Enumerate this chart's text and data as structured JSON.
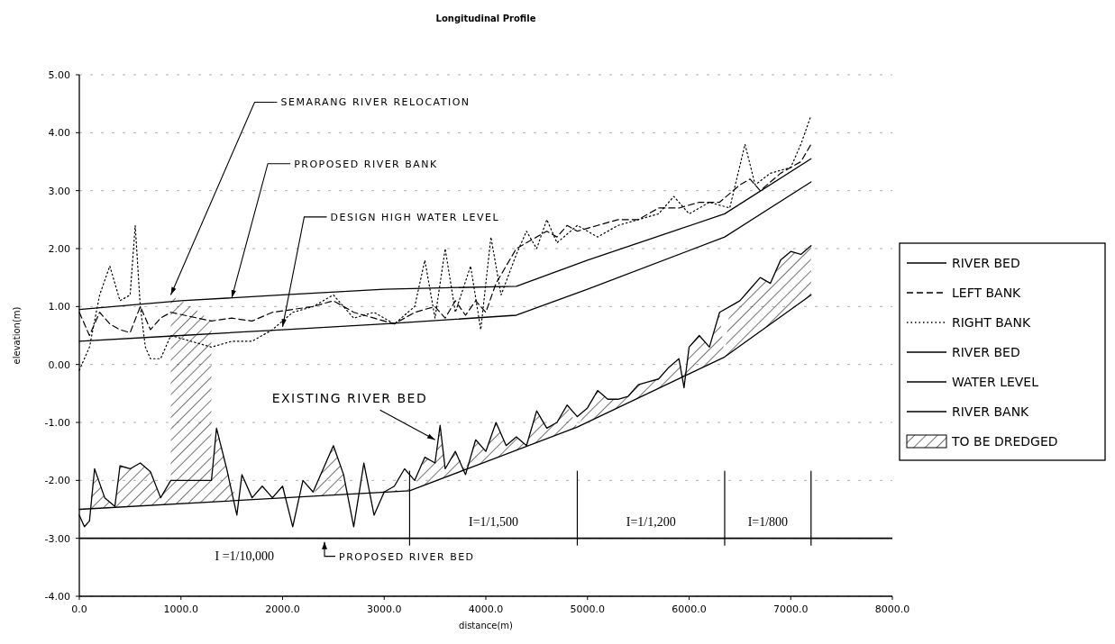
{
  "chart_data": {
    "type": "line",
    "title": "Longitudinal Profile",
    "xlabel": "distance(m)",
    "ylabel": "elevation(m)",
    "xlim": [
      0,
      8000
    ],
    "xticks": [
      {
        "value": 0,
        "label": "0.0"
      },
      {
        "value": 1000,
        "label": "1000.0"
      },
      {
        "value": 2000,
        "label": "2000.0"
      },
      {
        "value": 3000,
        "label": "3000.0"
      },
      {
        "value": 4000,
        "label": "4000.0"
      },
      {
        "value": 5000,
        "label": "5000.0"
      },
      {
        "value": 6000,
        "label": "6000.0"
      },
      {
        "value": 7000,
        "label": "7000.0"
      },
      {
        "value": 8000,
        "label": "8000.0"
      }
    ],
    "ylim": [
      -4,
      5
    ],
    "yticks": [
      {
        "value": -4,
        "label": "-4.00"
      },
      {
        "value": -3,
        "label": "-3.00"
      },
      {
        "value": -2,
        "label": "-2.00"
      },
      {
        "value": -1,
        "label": "-1.00"
      },
      {
        "value": 0,
        "label": "0.00"
      },
      {
        "value": 1,
        "label": "1.00"
      },
      {
        "value": 2,
        "label": "2.00"
      },
      {
        "value": 3,
        "label": "3.00"
      },
      {
        "value": 4,
        "label": "4.00"
      },
      {
        "value": 5,
        "label": "5.00"
      }
    ],
    "grid": "y",
    "legend": "right",
    "series": [
      {
        "name": "RIVER BED",
        "type": "line",
        "line_style": "solid",
        "color": "#000000",
        "x": [
          0,
          50,
          100,
          150,
          250,
          350,
          400,
          500,
          600,
          700,
          800,
          900,
          1300,
          1350,
          1450,
          1550,
          1600,
          1700,
          1800,
          1900,
          2000,
          2100,
          2200,
          2300,
          2400,
          2500,
          2600,
          2700,
          2800,
          2900,
          3000,
          3100,
          3200,
          3300,
          3400,
          3500,
          3550,
          3600,
          3700,
          3800,
          3900,
          4000,
          4100,
          4200,
          4300,
          4400,
          4500,
          4600,
          4700,
          4800,
          4900,
          5000,
          5100,
          5200,
          5300,
          5400,
          5500,
          5600,
          5700,
          5800,
          5900,
          5950,
          6000,
          6100,
          6200,
          6300,
          6400,
          6500,
          6600,
          6700,
          6800,
          6900,
          7000,
          7100,
          7200
        ],
        "values": [
          -2.6,
          -2.8,
          -2.7,
          -1.8,
          -2.3,
          -2.45,
          -1.75,
          -1.8,
          -1.7,
          -1.85,
          -2.3,
          -2.0,
          -2.0,
          -1.1,
          -1.8,
          -2.6,
          -1.9,
          -2.3,
          -2.1,
          -2.3,
          -2.1,
          -2.8,
          -2.0,
          -2.2,
          -1.8,
          -1.4,
          -1.9,
          -2.8,
          -1.7,
          -2.6,
          -2.2,
          -2.1,
          -1.8,
          -2.0,
          -1.6,
          -1.7,
          -1.05,
          -1.8,
          -1.5,
          -1.9,
          -1.3,
          -1.5,
          -1.0,
          -1.4,
          -1.25,
          -1.4,
          -0.8,
          -1.1,
          -1.0,
          -0.7,
          -0.9,
          -0.75,
          -0.45,
          -0.6,
          -0.6,
          -0.55,
          -0.35,
          -0.3,
          -0.25,
          -0.05,
          0.1,
          -0.4,
          0.3,
          0.5,
          0.3,
          0.9,
          1.0,
          1.1,
          1.3,
          1.5,
          1.4,
          1.8,
          1.95,
          1.9,
          2.05
        ]
      },
      {
        "name": "LEFT BANK",
        "type": "line",
        "line_style": "dashed",
        "color": "#000000",
        "x": [
          0,
          100,
          200,
          300,
          400,
          500,
          600,
          700,
          800,
          900,
          1300,
          1500,
          1700,
          1900,
          2100,
          2300,
          2500,
          2700,
          2900,
          3100,
          3300,
          3500,
          3600,
          3700,
          3800,
          3900,
          4000,
          4100,
          4200,
          4300,
          4400,
          4500,
          4600,
          4700,
          4800,
          4900,
          5100,
          5300,
          5500,
          5700,
          5900,
          6100,
          6300,
          6500,
          6600,
          6700,
          6900,
          7100,
          7200
        ],
        "values": [
          0.9,
          0.5,
          0.9,
          0.7,
          0.6,
          0.55,
          1.0,
          0.6,
          0.8,
          0.9,
          0.75,
          0.8,
          0.75,
          0.9,
          0.95,
          1.0,
          1.1,
          0.9,
          0.8,
          0.7,
          0.9,
          1.0,
          0.8,
          1.1,
          0.85,
          1.1,
          0.9,
          1.4,
          1.7,
          2.0,
          2.1,
          2.2,
          2.3,
          2.2,
          2.4,
          2.3,
          2.4,
          2.5,
          2.5,
          2.7,
          2.7,
          2.8,
          2.8,
          3.1,
          3.2,
          3.0,
          3.3,
          3.5,
          3.8
        ]
      },
      {
        "name": "RIGHT BANK",
        "type": "line",
        "line_style": "dotted",
        "color": "#000000",
        "x": [
          0,
          100,
          200,
          300,
          400,
          500,
          550,
          600,
          650,
          700,
          800,
          900,
          1300,
          1500,
          1700,
          1900,
          2100,
          2300,
          2500,
          2700,
          2900,
          3100,
          3300,
          3400,
          3500,
          3600,
          3700,
          3850,
          3950,
          4050,
          4150,
          4300,
          4400,
          4500,
          4600,
          4700,
          4900,
          5100,
          5300,
          5500,
          5700,
          5850,
          6000,
          6200,
          6400,
          6550,
          6650,
          6800,
          7000,
          7100,
          7200
        ],
        "values": [
          -0.1,
          0.3,
          1.2,
          1.7,
          1.1,
          1.2,
          2.4,
          1.0,
          0.3,
          0.1,
          0.1,
          0.5,
          0.3,
          0.4,
          0.4,
          0.6,
          0.9,
          1.0,
          1.2,
          0.8,
          0.9,
          0.7,
          1.0,
          1.8,
          0.8,
          2.0,
          0.9,
          1.7,
          0.6,
          2.2,
          1.2,
          1.9,
          2.3,
          2.0,
          2.5,
          2.1,
          2.4,
          2.2,
          2.4,
          2.5,
          2.6,
          2.9,
          2.6,
          2.8,
          2.7,
          3.8,
          3.1,
          3.3,
          3.4,
          3.8,
          4.3
        ]
      },
      {
        "name": "RIVER BED",
        "type": "line",
        "line_style": "solid",
        "color": "#000000",
        "x": [
          0,
          3250,
          4900,
          6350,
          7200
        ],
        "values": [
          -2.5,
          -2.18,
          -1.08,
          0.13,
          1.2
        ]
      },
      {
        "name": "WATER LEVEL",
        "type": "line",
        "line_style": "solid",
        "color": "#000000",
        "x": [
          0,
          1000,
          2000,
          3000,
          4300,
          5000,
          6350,
          7200
        ],
        "values": [
          0.4,
          0.5,
          0.6,
          0.7,
          0.85,
          1.3,
          2.2,
          3.15
        ]
      },
      {
        "name": "RIVER BANK",
        "type": "line",
        "line_style": "solid",
        "color": "#000000",
        "x": [
          0,
          1000,
          2000,
          3000,
          4300,
          5000,
          6350,
          7200
        ],
        "values": [
          0.95,
          1.1,
          1.2,
          1.3,
          1.35,
          1.8,
          2.6,
          3.55
        ]
      },
      {
        "name": "TO BE DREDGED",
        "type": "area",
        "color": "#000000",
        "x": [
          100,
          150,
          250,
          350,
          400,
          500,
          600,
          700,
          800,
          900,
          900,
          1100,
          1300,
          1300,
          1350,
          1450,
          1550,
          2300,
          2400,
          2500,
          2600,
          2650,
          3300,
          3400,
          3500,
          3550,
          3600,
          3700,
          3800,
          3900,
          4000,
          4100,
          4200,
          4300,
          4400,
          4500,
          4600,
          4700,
          4800,
          4900,
          5000,
          5100,
          5200,
          5300,
          5400,
          5500,
          5600,
          5700,
          5800,
          5900,
          5950,
          6000,
          6100,
          6200,
          6300,
          6350,
          6400,
          6500,
          6600,
          6700,
          6800,
          6900,
          7000,
          7100,
          7200
        ],
        "values": [
          -2.49,
          -1.8,
          -2.3,
          -2.45,
          -1.75,
          -1.8,
          -1.7,
          -1.85,
          -2.3,
          -2.0,
          1.2,
          1.0,
          0.75,
          -2.0,
          -1.1,
          -1.8,
          -2.35,
          -2.27,
          -1.8,
          -1.4,
          -1.9,
          -2.24,
          -2.14,
          -1.6,
          -1.7,
          -1.05,
          -1.8,
          -1.5,
          -1.81,
          -1.3,
          -1.5,
          -1.0,
          -1.4,
          -1.25,
          -1.4,
          -0.8,
          -1.1,
          -1.0,
          -0.7,
          -1.08,
          -0.75,
          -0.45,
          -0.6,
          -0.6,
          -0.55,
          -0.35,
          -0.3,
          -0.25,
          -0.05,
          0.1,
          -0.2,
          0.3,
          0.5,
          0.3,
          0.9,
          0.13,
          1.0,
          1.1,
          1.3,
          1.5,
          1.4,
          1.8,
          1.95,
          1.9,
          2.05
        ]
      }
    ],
    "ref_lines": [
      {
        "axis": "y",
        "value": -3
      },
      {
        "axis": "x",
        "value": 3250
      },
      {
        "axis": "x",
        "value": 4900
      },
      {
        "axis": "x",
        "value": 6350
      },
      {
        "axis": "x",
        "value": 7200
      }
    ],
    "annotations": [
      {
        "text": "SEMARANG RIVER RELOCATION",
        "x": 900,
        "y": 1.2
      },
      {
        "text": "PROPOSED RIVER BANK",
        "x": 1500,
        "y": 1.15
      },
      {
        "text": "DESIGN HIGH WATER LEVEL",
        "x": 2000,
        "y": 0.65
      },
      {
        "text": "EXISTING RIVER BED",
        "x": 3500,
        "y": -1.3
      },
      "PROPOSED RIVER BED",
      "I =1/10,000",
      "I=1/1,500",
      "I=1/1,200",
      "I=1/800"
    ]
  }
}
